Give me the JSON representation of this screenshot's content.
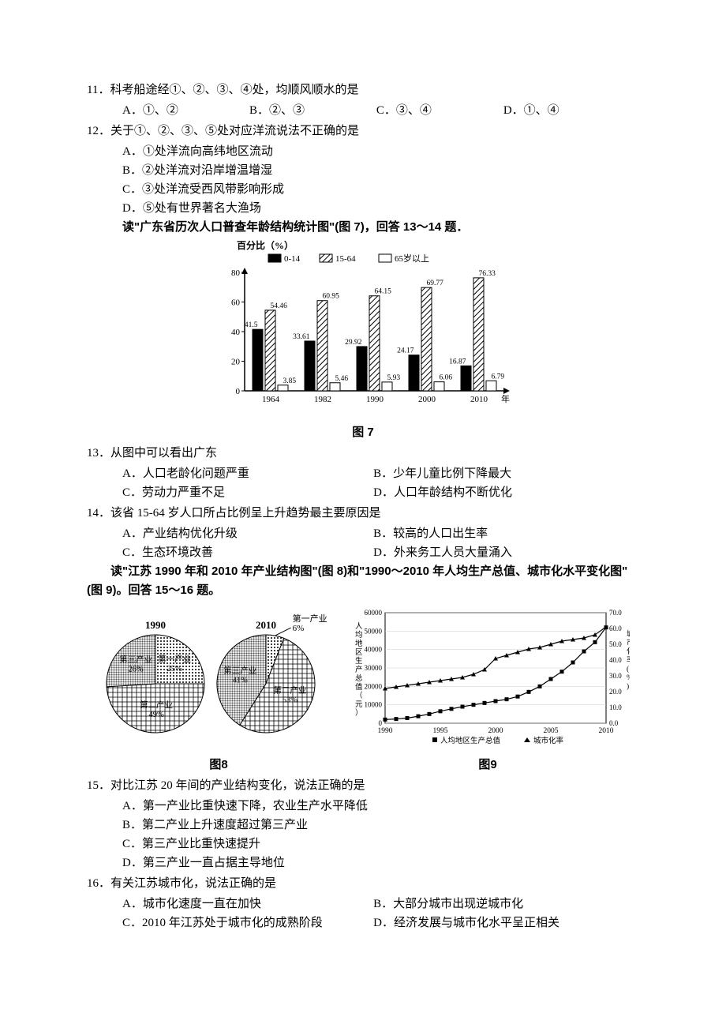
{
  "q11": {
    "num": "11．",
    "text": "科考船途经①、②、③、④处，均顺风顺水的是",
    "opts": [
      "A．①、②",
      "B．②、③",
      "C．③、④",
      "D．①、④"
    ]
  },
  "q12": {
    "num": "12．",
    "text": "关于①、②、③、⑤处对应洋流说法不正确的是",
    "opts": [
      "A．①处洋流向高纬地区流动",
      "B．②处洋流对沿岸增温增湿",
      "C．③处洋流受西风带影响形成",
      "D．⑤处有世界著名大渔场"
    ]
  },
  "lead13": "读\"广东省历次人口普查年龄结构统计图\"(图 7)，回答 13～14 题．",
  "fig7": {
    "caption": "图 7",
    "ylabel": "百分比（%）",
    "xlabel": "年",
    "ylim": [
      0,
      80
    ],
    "ytick_step": 20,
    "legend": [
      "0-14",
      "15-64",
      "65岁以上"
    ],
    "categories": [
      "1964",
      "1982",
      "1990",
      "2000",
      "2010"
    ],
    "series": {
      "0-14": [
        41.5,
        33.61,
        29.92,
        24.17,
        16.87
      ],
      "15-64": [
        54.46,
        60.95,
        64.15,
        69.77,
        76.33
      ],
      "65+": [
        3.85,
        5.46,
        5.93,
        6.06,
        6.79
      ]
    },
    "bar_colors": {
      "0-14": "#000000",
      "15-64": "hatch",
      "65+": "#ffffff"
    },
    "grid_color": "#000",
    "background": "#ffffff",
    "label_fontsize": 11
  },
  "q13": {
    "num": "13．",
    "text": "从图中可以看出广东",
    "opts": [
      "A．人口老龄化问题严重",
      "B．少年儿童比例下降最大",
      "C．劳动力严重不足",
      "D．人口年龄结构不断优化"
    ]
  },
  "q14": {
    "num": "14．",
    "text": "该省 15-64 岁人口所占比例呈上升趋势最主要原因是",
    "opts": [
      "A．产业结构优化升级",
      "B．较高的人口出生率",
      "C．生态环境改善",
      "D．外来务工人员大量涌入"
    ]
  },
  "lead15": "读\"江苏 1990 年和 2010 年产业结构图\"(图 8)和\"1990～2010 年人均生产总值、城市化水平变化图\"(图 9)。回答 15～16 题。",
  "fig8": {
    "caption": "图8",
    "pies": {
      "1990": {
        "title": "1990",
        "slices": [
          {
            "label": "第一产业",
            "pct": 25
          },
          {
            "label": "第二产业",
            "pct": 49
          },
          {
            "label": "第三产业",
            "pct": 26
          }
        ]
      },
      "2010": {
        "title": "2010",
        "slices": [
          {
            "label": "第一产业",
            "pct": 6
          },
          {
            "label": "第二产业",
            "pct": 53
          },
          {
            "label": "第三产业",
            "pct": 41
          }
        ]
      }
    },
    "slice_outline": "#000"
  },
  "fig9": {
    "caption": "图9",
    "xlim": [
      1990,
      2010
    ],
    "xtick_step": 5,
    "y1_label": "人均地区生产总值（元）",
    "y1_lim": [
      0,
      60000
    ],
    "y1_tick_step": 10000,
    "y2_label": "城市化率(%)",
    "y2_lim": [
      0,
      70
    ],
    "y2_tick_step": 10,
    "series": {
      "gdp": {
        "label": "人均地区生产总值",
        "marker": "square",
        "color": "#000",
        "points": [
          [
            1990,
            2000
          ],
          [
            1991,
            2300
          ],
          [
            1992,
            2800
          ],
          [
            1993,
            3800
          ],
          [
            1994,
            5000
          ],
          [
            1995,
            6500
          ],
          [
            1996,
            7800
          ],
          [
            1997,
            9000
          ],
          [
            1998,
            10000
          ],
          [
            1999,
            11000
          ],
          [
            2000,
            12000
          ],
          [
            2001,
            13000
          ],
          [
            2002,
            14500
          ],
          [
            2003,
            17000
          ],
          [
            2004,
            20000
          ],
          [
            2005,
            24000
          ],
          [
            2006,
            28000
          ],
          [
            2007,
            33000
          ],
          [
            2008,
            39000
          ],
          [
            2009,
            44000
          ],
          [
            2010,
            52000
          ]
        ]
      },
      "urban": {
        "label": "城市化率",
        "marker": "triangle",
        "color": "#000",
        "points": [
          [
            1990,
            22
          ],
          [
            1991,
            23
          ],
          [
            1992,
            24
          ],
          [
            1993,
            25
          ],
          [
            1994,
            26
          ],
          [
            1995,
            27
          ],
          [
            1996,
            28
          ],
          [
            1997,
            29
          ],
          [
            1998,
            31
          ],
          [
            1999,
            34
          ],
          [
            2000,
            41
          ],
          [
            2001,
            43
          ],
          [
            2002,
            45
          ],
          [
            2003,
            47
          ],
          [
            2004,
            48
          ],
          [
            2005,
            50
          ],
          [
            2006,
            52
          ],
          [
            2007,
            53
          ],
          [
            2008,
            54
          ],
          [
            2009,
            56
          ],
          [
            2010,
            61
          ]
        ]
      }
    },
    "grid_color": "#999",
    "background": "#ffffff"
  },
  "q15": {
    "num": "15．",
    "text": "对比江苏 20 年间的产业结构变化，说法正确的是",
    "opts": [
      "A．第一产业比重快速下降，农业生产水平降低",
      "B．第二产业上升速度超过第三产业",
      "C．第三产业比重快速提升",
      "D．第三产业一直占据主导地位"
    ]
  },
  "q16": {
    "num": "16．",
    "text": "有关江苏城市化，说法正确的是",
    "opts": [
      "A．城市化速度一直在加快",
      "B．大部分城市出现逆城市化",
      "C．2010 年江苏处于城市化的成熟阶段",
      "D．经济发展与城市化水平呈正相关"
    ]
  }
}
